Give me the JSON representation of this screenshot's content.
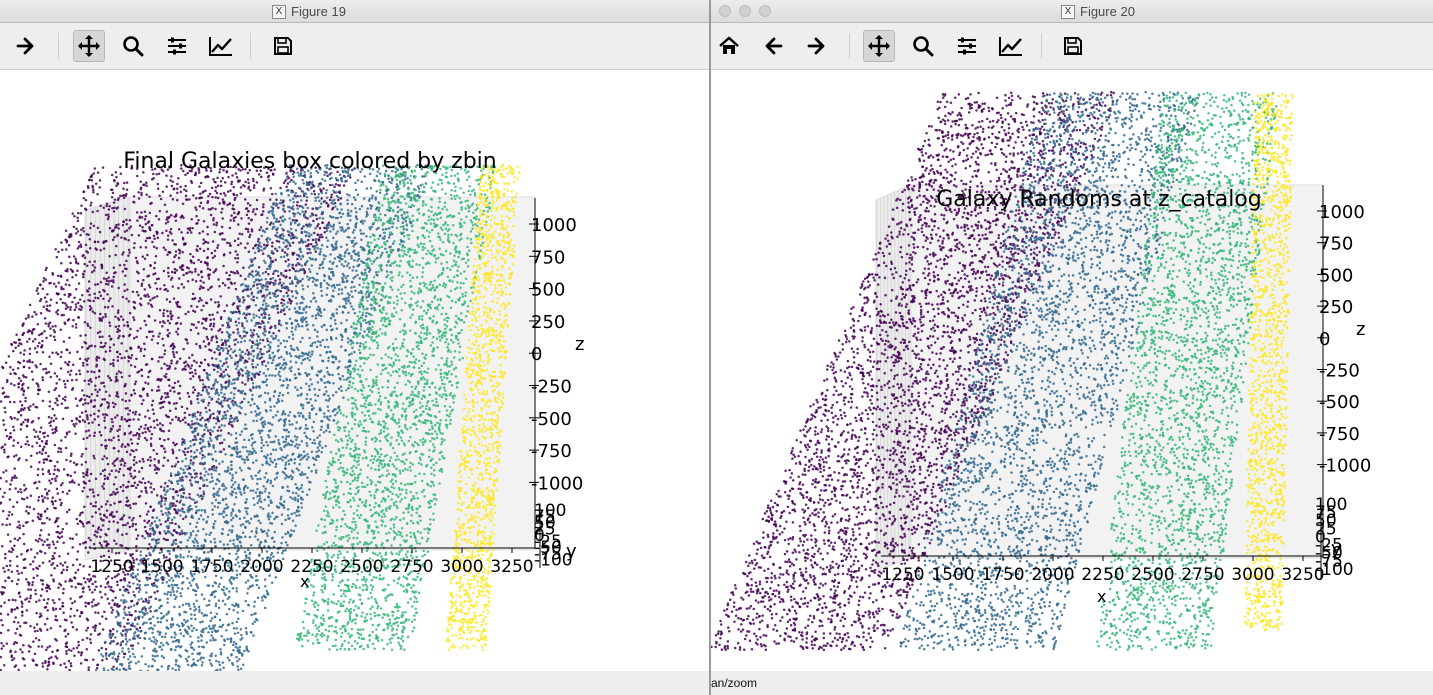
{
  "windows": [
    {
      "id": "fig19",
      "window_title": "Figure 19",
      "toolbar": [
        "forward-icon",
        "pan-icon",
        "zoom-icon",
        "configure-subplots-icon",
        "edit-axis-icon",
        "save-icon"
      ],
      "active_tool": "pan-icon",
      "status_text": "",
      "plot": {
        "title": "Final Galaxies box colored by zbin",
        "x_axis_label": "x",
        "y_axis_label": "y",
        "z_axis_label": "z",
        "x_ticks": [
          "1250",
          "1500",
          "1750",
          "2000",
          "2250",
          "2500",
          "2750",
          "3000",
          "3250"
        ],
        "y_ticks": [
          "100",
          "75",
          "50",
          "25",
          "0",
          "-25",
          "-50",
          "-75",
          "-100"
        ],
        "z_ticks": [
          "1000",
          "750",
          "500",
          "250",
          "0",
          "-250",
          "-500",
          "-750",
          "-1000"
        ]
      }
    },
    {
      "id": "fig20",
      "window_title": "Figure 20",
      "toolbar": [
        "home-icon",
        "back-icon",
        "forward-icon",
        "pan-icon",
        "zoom-icon",
        "configure-subplots-icon",
        "edit-axis-icon",
        "save-icon"
      ],
      "active_tool": "pan-icon",
      "status_text": "an/zoom",
      "plot": {
        "title": "Galaxy Randoms at z_catalog",
        "x_axis_label": "x",
        "y_axis_label": "y",
        "z_axis_label": "z",
        "x_ticks": [
          "1250",
          "1500",
          "1750",
          "2000",
          "2250",
          "2500",
          "2750",
          "3000",
          "3250"
        ],
        "y_ticks": [
          "100",
          "75",
          "50",
          "25",
          "0",
          "-25",
          "-50",
          "-75",
          "-100"
        ],
        "z_ticks": [
          "1000",
          "750",
          "500",
          "250",
          "0",
          "-250",
          "-500",
          "-750",
          "-1000"
        ]
      }
    }
  ],
  "colors": {
    "zbin": [
      "#440154",
      "#31688e",
      "#35b779",
      "#fde725"
    ],
    "toolbar_bg": "#efeeec",
    "active_tool_bg": "#d6d6d6"
  }
}
